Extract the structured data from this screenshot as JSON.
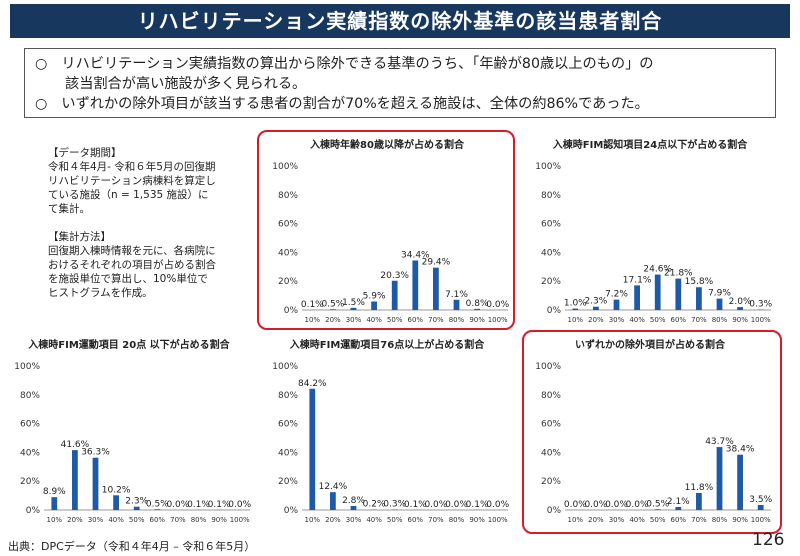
{
  "header": {
    "title": "リハビリテーション実績指数の除外基準の該当患者割合"
  },
  "summary": {
    "bullet": "○",
    "line1a": "リハビリテーション実績指数の算出から除外できる基準のうち、「年齢が80歳以上のもの」の",
    "line1b": "該当割合が高い施設が多く見られる。",
    "line2": "いずれかの除外項目が該当する患者の割合が70%を超える施設は、全体の約86%であった。"
  },
  "notes": {
    "period_heading": "【データ期間】",
    "period_lines": [
      "令和４年4月- 令和６年5月の回復期",
      "リハビリテーション病棟料を算定し",
      "ている施設（n = 1,535 施設）に",
      "て集計。"
    ],
    "method_heading": "【集計方法】",
    "method_lines": [
      "回復期入棟時情報を元に、各病院に",
      "おけるそれぞれの項目が占める割合",
      "を施設単位で算出し、10%単位で",
      "ヒストグラムを作成。"
    ]
  },
  "source": "出典：DPCデータ（令和４年4月 – 令和６年5月）",
  "page_number": "126",
  "colors": {
    "bar": "#1f5aa6",
    "highlight": "#d9192c",
    "title_bg": "#17375e"
  },
  "chart_data": [
    {
      "type": "bar",
      "title": "入棟時年齢80歳以降が占める割合",
      "categories": [
        "10%",
        "20%",
        "30%",
        "40%",
        "50%",
        "60%",
        "70%",
        "80%",
        "90%",
        "100%"
      ],
      "values": [
        0.1,
        0.5,
        1.5,
        5.9,
        20.3,
        34.4,
        29.4,
        7.1,
        0.8,
        0.0
      ],
      "labels": [
        "0.1%",
        "0.5%",
        "1.5%",
        "5.9%",
        "20.3%",
        "34.4%",
        "29.4%",
        "7.1%",
        "0.8%",
        "0.0%"
      ],
      "yticks": [
        "0%",
        "20%",
        "40%",
        "60%",
        "80%",
        "100%"
      ],
      "ylim": [
        0,
        100
      ],
      "highlighted": true
    },
    {
      "type": "bar",
      "title": "入棟時FIM認知項目24点以下が占める割合",
      "categories": [
        "10%",
        "20%",
        "30%",
        "40%",
        "50%",
        "60%",
        "70%",
        "80%",
        "90%",
        "100%"
      ],
      "values": [
        1.0,
        2.3,
        7.2,
        17.1,
        24.6,
        21.8,
        15.8,
        7.9,
        2.0,
        0.3
      ],
      "labels": [
        "1.0%",
        "2.3%",
        "7.2%",
        "17.1%",
        "24.6%",
        "21.8%",
        "15.8%",
        "7.9%",
        "2.0%",
        "0.3%"
      ],
      "yticks": [
        "0%",
        "20%",
        "40%",
        "60%",
        "80%",
        "100%"
      ],
      "ylim": [
        0,
        100
      ],
      "highlighted": false
    },
    {
      "type": "bar",
      "title": "入棟時FIM運動項目 20点 以下が占める割合",
      "categories": [
        "10%",
        "20%",
        "30%",
        "40%",
        "50%",
        "60%",
        "70%",
        "80%",
        "90%",
        "100%"
      ],
      "values": [
        8.9,
        41.6,
        36.3,
        10.2,
        2.3,
        0.5,
        0.0,
        0.1,
        0.1,
        0.0
      ],
      "labels": [
        "8.9%",
        "41.6%",
        "36.3%",
        "10.2%",
        "2.3%",
        "0.5%",
        "0.0%",
        "0.1%",
        "0.1%",
        "0.0%"
      ],
      "yticks": [
        "0%",
        "20%",
        "40%",
        "60%",
        "80%",
        "100%"
      ],
      "ylim": [
        0,
        100
      ],
      "highlighted": false
    },
    {
      "type": "bar",
      "title": "入棟時FIM運動項目76点以上が占める割合",
      "categories": [
        "10%",
        "20%",
        "30%",
        "40%",
        "50%",
        "60%",
        "70%",
        "80%",
        "90%",
        "100%"
      ],
      "values": [
        84.2,
        12.4,
        2.8,
        0.2,
        0.3,
        0.1,
        0.0,
        0.0,
        0.1,
        0.0
      ],
      "labels": [
        "84.2%",
        "12.4%",
        "2.8%",
        "0.2%",
        "0.3%",
        "0.1%",
        "0.0%",
        "0.0%",
        "0.1%",
        "0.0%"
      ],
      "yticks": [
        "0%",
        "20%",
        "40%",
        "60%",
        "80%",
        "100%"
      ],
      "ylim": [
        0,
        100
      ],
      "highlighted": false
    },
    {
      "type": "bar",
      "title": "いずれかの除外項目が占める割合",
      "categories": [
        "10%",
        "20%",
        "30%",
        "40%",
        "50%",
        "60%",
        "70%",
        "80%",
        "90%",
        "100%"
      ],
      "values": [
        0.0,
        0.0,
        0.0,
        0.0,
        0.5,
        2.1,
        11.8,
        43.7,
        38.4,
        3.5
      ],
      "labels": [
        "0.0%",
        "0.0%",
        "0.0%",
        "0.0%",
        "0.5%",
        "2.1%",
        "11.8%",
        "43.7%",
        "38.4%",
        "3.5%"
      ],
      "yticks": [
        "0%",
        "20%",
        "40%",
        "60%",
        "80%",
        "100%"
      ],
      "ylim": [
        0,
        100
      ],
      "highlighted": true
    }
  ]
}
